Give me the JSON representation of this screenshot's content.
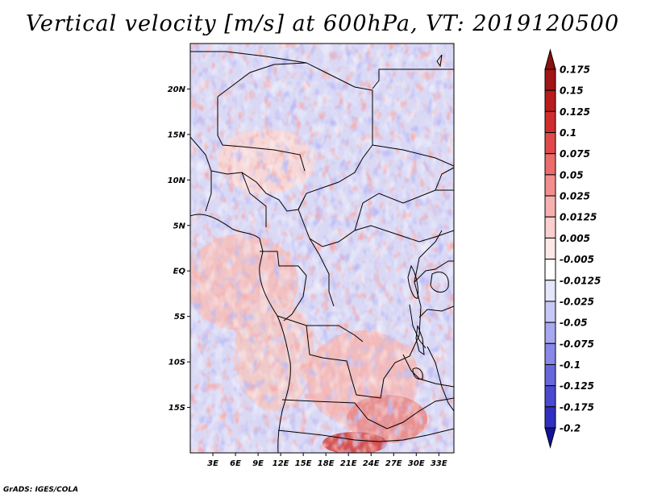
{
  "title": "Vertical velocity [m/s] at 600hPa, VT: 2019120500",
  "credit": "GrADS: IGES/COLA",
  "map": {
    "lon_range": [
      0,
      35
    ],
    "lat_range": [
      -20,
      25
    ],
    "lat_ticks": [
      {
        "value": 20,
        "label": "20N"
      },
      {
        "value": 15,
        "label": "15N"
      },
      {
        "value": 10,
        "label": "10N"
      },
      {
        "value": 5,
        "label": "5N"
      },
      {
        "value": 0,
        "label": "EQ"
      },
      {
        "value": -5,
        "label": "5S"
      },
      {
        "value": -10,
        "label": "10S"
      },
      {
        "value": -15,
        "label": "15S"
      }
    ],
    "lon_ticks": [
      {
        "value": 3,
        "label": "3E"
      },
      {
        "value": 6,
        "label": "6E"
      },
      {
        "value": 9,
        "label": "9E"
      },
      {
        "value": 12,
        "label": "12E"
      },
      {
        "value": 15,
        "label": "15E"
      },
      {
        "value": 18,
        "label": "18E"
      },
      {
        "value": 21,
        "label": "21E"
      },
      {
        "value": 24,
        "label": "24E"
      },
      {
        "value": 27,
        "label": "27E"
      },
      {
        "value": 30,
        "label": "30E"
      },
      {
        "value": 33,
        "label": "33E"
      }
    ]
  },
  "colorbar": {
    "levels": [
      {
        "label": "0.175",
        "color": "#a01616"
      },
      {
        "label": "0.15",
        "color": "#b81c1c"
      },
      {
        "label": "0.125",
        "color": "#d02e2e"
      },
      {
        "label": "0.1",
        "color": "#e04a4a"
      },
      {
        "label": "0.075",
        "color": "#ec6c6c"
      },
      {
        "label": "0.05",
        "color": "#f28e8e"
      },
      {
        "label": "0.025",
        "color": "#f7b0b0"
      },
      {
        "label": "0.0125",
        "color": "#fbcfcf"
      },
      {
        "label": "0.005",
        "color": "#fde8e8"
      },
      {
        "label": "-0.005",
        "color": "#ffffff"
      },
      {
        "label": "-0.0125",
        "color": "#e6e6fb"
      },
      {
        "label": "-0.025",
        "color": "#c8c8f6"
      },
      {
        "label": "-0.05",
        "color": "#a8a8f0"
      },
      {
        "label": "-0.075",
        "color": "#8888e8"
      },
      {
        "label": "-0.1",
        "color": "#6868dc"
      },
      {
        "label": "-0.125",
        "color": "#4a4ad0"
      },
      {
        "label": "-0.175",
        "color": "#3030c0"
      },
      {
        "label": "-0.2",
        "color": "#1a1aa8"
      }
    ],
    "top_color": "#8c1010",
    "bottom_color": "#12129a"
  }
}
